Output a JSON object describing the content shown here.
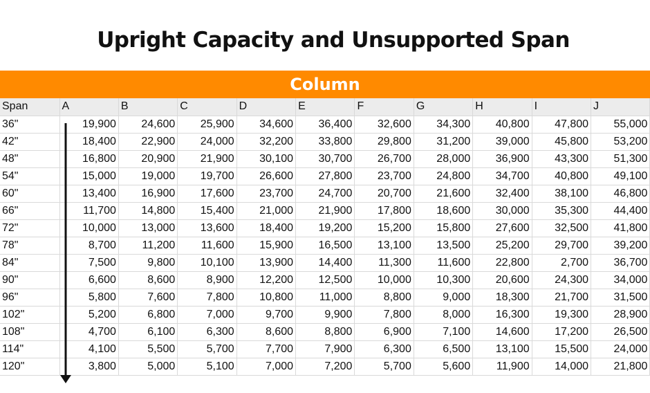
{
  "title": "Upright Capacity and Unsupported Span",
  "banner": "Column",
  "headers": [
    "Span",
    "A",
    "B",
    "C",
    "D",
    "E",
    "F",
    "G",
    "H",
    "I",
    "J"
  ],
  "rows": [
    {
      "span": "36\"",
      "values": [
        "19,900",
        "24,600",
        "25,900",
        "34,600",
        "36,400",
        "32,600",
        "34,300",
        "40,800",
        "47,800",
        "55,000"
      ]
    },
    {
      "span": "42\"",
      "values": [
        "18,400",
        "22,900",
        "24,000",
        "32,200",
        "33,800",
        "29,800",
        "31,200",
        "39,000",
        "45,800",
        "53,200"
      ]
    },
    {
      "span": "48\"",
      "values": [
        "16,800",
        "20,900",
        "21,900",
        "30,100",
        "30,700",
        "26,700",
        "28,000",
        "36,900",
        "43,300",
        "51,300"
      ]
    },
    {
      "span": "54\"",
      "values": [
        "15,000",
        "19,000",
        "19,700",
        "26,600",
        "27,800",
        "23,700",
        "24,800",
        "34,700",
        "40,800",
        "49,100"
      ]
    },
    {
      "span": "60\"",
      "values": [
        "13,400",
        "16,900",
        "17,600",
        "23,700",
        "24,700",
        "20,700",
        "21,600",
        "32,400",
        "38,100",
        "46,800"
      ]
    },
    {
      "span": "66\"",
      "values": [
        "11,700",
        "14,800",
        "15,400",
        "21,000",
        "21,900",
        "17,800",
        "18,600",
        "30,000",
        "35,300",
        "44,400"
      ]
    },
    {
      "span": "72\"",
      "values": [
        "10,000",
        "13,000",
        "13,600",
        "18,400",
        "19,200",
        "15,200",
        "15,800",
        "27,600",
        "32,500",
        "41,800"
      ]
    },
    {
      "span": "78\"",
      "values": [
        "8,700",
        "11,200",
        "11,600",
        "15,900",
        "16,500",
        "13,100",
        "13,500",
        "25,200",
        "29,700",
        "39,200"
      ]
    },
    {
      "span": "84\"",
      "values": [
        "7,500",
        "9,800",
        "10,100",
        "13,900",
        "14,400",
        "11,300",
        "11,600",
        "22,800",
        "2,700",
        "36,700"
      ]
    },
    {
      "span": "90\"",
      "values": [
        "6,600",
        "8,600",
        "8,900",
        "12,200",
        "12,500",
        "10,000",
        "10,300",
        "20,600",
        "24,300",
        "34,000"
      ]
    },
    {
      "span": "96\"",
      "values": [
        "5,800",
        "7,600",
        "7,800",
        "10,800",
        "11,000",
        "8,800",
        "9,000",
        "18,300",
        "21,700",
        "31,500"
      ]
    },
    {
      "span": "102\"",
      "values": [
        "5,200",
        "6,800",
        "7,000",
        "9,700",
        "9,900",
        "7,800",
        "8,000",
        "16,300",
        "19,300",
        "28,900"
      ]
    },
    {
      "span": "108\"",
      "values": [
        "4,700",
        "6,100",
        "6,300",
        "8,600",
        "8,800",
        "6,900",
        "7,100",
        "14,600",
        "17,200",
        "26,500"
      ]
    },
    {
      "span": "114\"",
      "values": [
        "4,100",
        "5,500",
        "5,700",
        "7,700",
        "7,900",
        "6,300",
        "6,500",
        "13,100",
        "15,500",
        "24,000"
      ]
    },
    {
      "span": "120\"",
      "values": [
        "3,800",
        "5,000",
        "5,100",
        "7,000",
        "7,200",
        "5,700",
        "5,600",
        "11,900",
        "14,000",
        "21,800"
      ]
    }
  ]
}
